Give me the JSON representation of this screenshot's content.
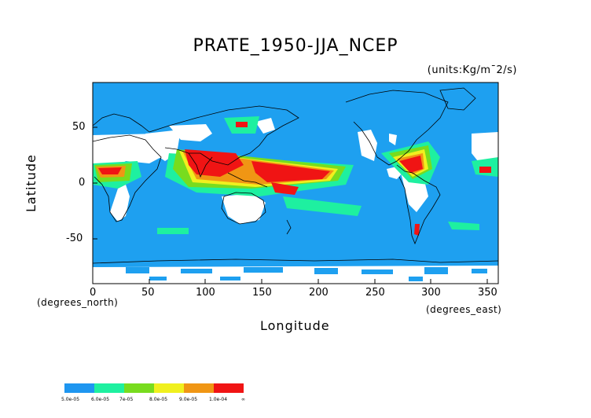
{
  "title": "PRATE_1950-JJA_NCEP",
  "units": "(units:Kg/m¯2/s)",
  "axes": {
    "x": {
      "title": "Longitude",
      "unit_label": "(degrees_east)",
      "ticks": [
        "0",
        "50",
        "100",
        "150",
        "200",
        "250",
        "300",
        "350"
      ],
      "range": [
        0,
        360
      ]
    },
    "y": {
      "title": "Latitude",
      "unit_label": "(degrees_north)",
      "ticks": [
        "50",
        "0",
        "-50"
      ],
      "range": [
        -90,
        90
      ]
    }
  },
  "colors": {
    "background_field": "#1ea0f0",
    "no_data": "#ffffff",
    "coastline": "#000000"
  },
  "legend": {
    "colors": [
      "#1e96f0",
      "#1ef0a0",
      "#78dc1e",
      "#f0f01e",
      "#f09614",
      "#f01414"
    ],
    "labels": [
      "5.0e-05",
      "6.0e-05",
      "7e-05",
      "8.0e-05",
      "9.0e-05",
      "1.0e-04",
      "∞"
    ]
  }
}
